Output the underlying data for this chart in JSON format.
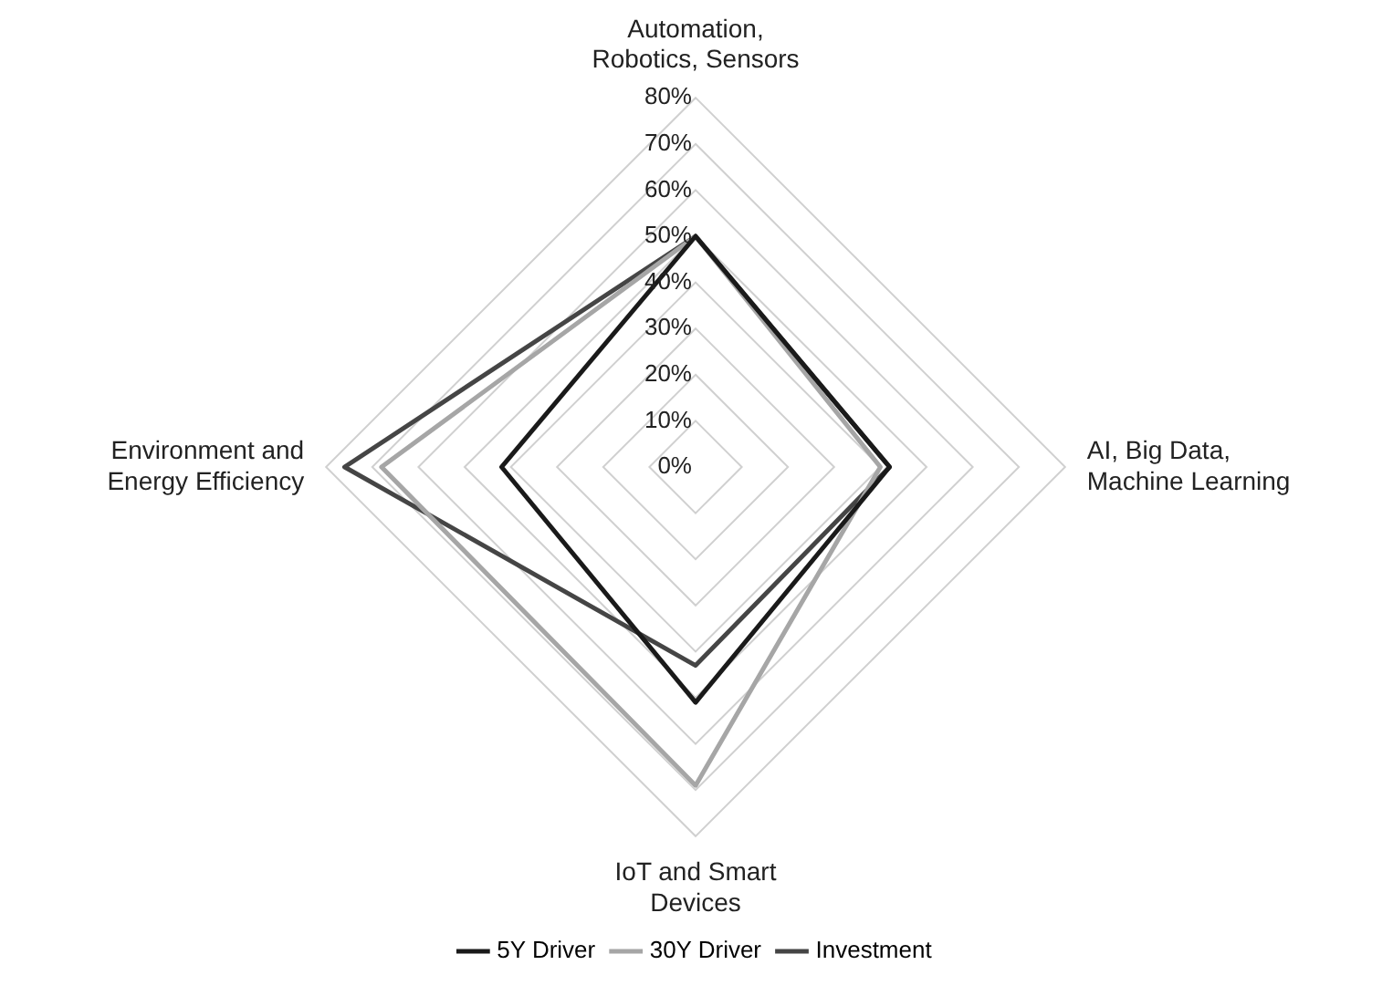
{
  "chart_data": {
    "type": "radar",
    "categories": [
      "Automation, Robotics, Sensors",
      "AI, Big Data, Machine Learning",
      "IoT and Smart Devices",
      "Environment and Energy Efficiency"
    ],
    "series": [
      {
        "name": "5Y Driver",
        "color": "#1a1a1a",
        "values": [
          50,
          42,
          51,
          42
        ]
      },
      {
        "name": "30Y Driver",
        "color": "#a6a6a6",
        "values": [
          50,
          40,
          69,
          68
        ]
      },
      {
        "name": "Investment",
        "color": "#454545",
        "values": [
          50,
          42,
          43,
          76
        ]
      }
    ],
    "ylim": [
      0,
      80
    ],
    "yticks": [
      {
        "value": 0,
        "label": "0%"
      },
      {
        "value": 10,
        "label": "10%"
      },
      {
        "value": 20,
        "label": "20%"
      },
      {
        "value": 30,
        "label": "30%"
      },
      {
        "value": 40,
        "label": "40%"
      },
      {
        "value": 50,
        "label": "50%"
      },
      {
        "value": 60,
        "label": "60%"
      },
      {
        "value": 70,
        "label": "70%"
      },
      {
        "value": 80,
        "label": "80%"
      }
    ],
    "grid": true,
    "legend": "bottom",
    "marker": "none",
    "line_style": "solid"
  }
}
